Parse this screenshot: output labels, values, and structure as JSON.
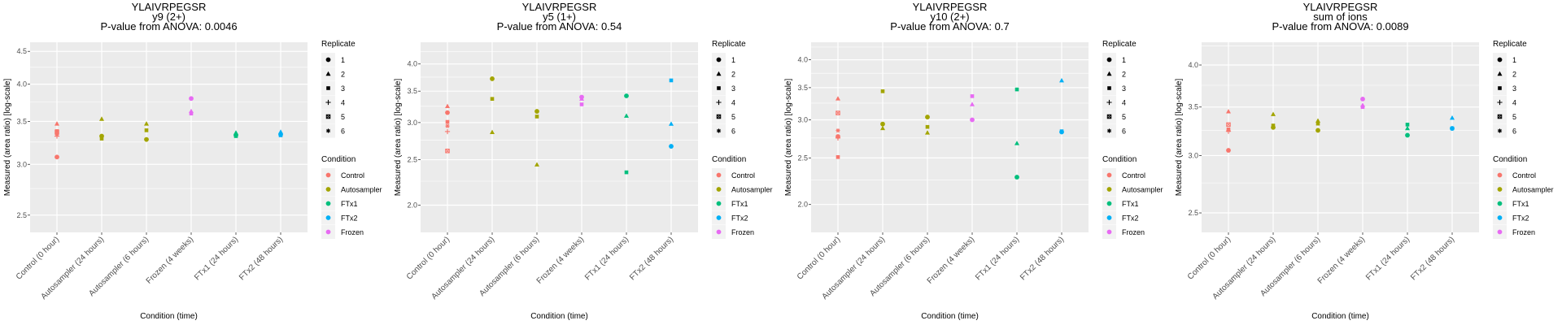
{
  "chart_data": [
    {
      "type": "scatter",
      "title": [
        "YLAIVRPEGSR",
        "y9 (2+)",
        "P-value from ANOVA: 0.0046"
      ],
      "xlabel": "Condition (time)",
      "ylabel": "Measured (area ratio) [log-scale]",
      "yscale": "log",
      "ylim": [
        2.35,
        4.65
      ],
      "yticks": [
        2.5,
        3.0,
        3.5,
        4.0,
        4.5
      ],
      "ytick_labels": [
        "2.5",
        "3.0",
        "3.5",
        "4.0",
        "4.5"
      ],
      "grid": true,
      "points": [
        {
          "cat": 0,
          "cond": "Control",
          "rep": 1,
          "y": 3.08
        },
        {
          "cat": 0,
          "cond": "Control",
          "rep": 2,
          "y": 3.47
        },
        {
          "cat": 0,
          "cond": "Control",
          "rep": 3,
          "y": 3.38
        },
        {
          "cat": 0,
          "cond": "Control",
          "rep": 4,
          "y": 3.32
        },
        {
          "cat": 0,
          "cond": "Control",
          "rep": 5,
          "y": 3.37
        },
        {
          "cat": 0,
          "cond": "Control",
          "rep": 6,
          "y": 3.34
        },
        {
          "cat": 1,
          "cond": "Autosampler",
          "rep": 1,
          "y": 3.32
        },
        {
          "cat": 1,
          "cond": "Autosampler",
          "rep": 2,
          "y": 3.53
        },
        {
          "cat": 1,
          "cond": "Autosampler",
          "rep": 3,
          "y": 3.29
        },
        {
          "cat": 2,
          "cond": "Autosampler",
          "rep": 1,
          "y": 3.28
        },
        {
          "cat": 2,
          "cond": "Autosampler",
          "rep": 2,
          "y": 3.47
        },
        {
          "cat": 2,
          "cond": "Autosampler",
          "rep": 3,
          "y": 3.39
        },
        {
          "cat": 3,
          "cond": "Frozen",
          "rep": 1,
          "y": 3.8
        },
        {
          "cat": 3,
          "cond": "Frozen",
          "rep": 2,
          "y": 3.63
        },
        {
          "cat": 3,
          "cond": "Frozen",
          "rep": 3,
          "y": 3.6
        },
        {
          "cat": 4,
          "cond": "FTx1",
          "rep": 1,
          "y": 3.33
        },
        {
          "cat": 4,
          "cond": "FTx1",
          "rep": 2,
          "y": 3.36
        },
        {
          "cat": 4,
          "cond": "FTx1",
          "rep": 3,
          "y": 3.32
        },
        {
          "cat": 5,
          "cond": "FTx2",
          "rep": 1,
          "y": 3.34
        },
        {
          "cat": 5,
          "cond": "FTx2",
          "rep": 2,
          "y": 3.37
        },
        {
          "cat": 5,
          "cond": "FTx2",
          "rep": 3,
          "y": 3.33
        }
      ]
    },
    {
      "type": "scatter",
      "title": [
        "YLAIVRPEGSR",
        "y5 (1+)",
        "P-value from ANOVA: 0.54"
      ],
      "xlabel": "Condition (time)",
      "ylabel": "Measured (area ratio) [log-scale]",
      "yscale": "log",
      "ylim": [
        1.75,
        4.45
      ],
      "yticks": [
        2.0,
        2.5,
        3.0,
        3.5,
        4.0
      ],
      "ytick_labels": [
        "2.0",
        "2.5",
        "3.0",
        "3.5",
        "4.0"
      ],
      "grid": true,
      "points": [
        {
          "cat": 0,
          "cond": "Control",
          "rep": 1,
          "y": 3.15
        },
        {
          "cat": 0,
          "cond": "Control",
          "rep": 2,
          "y": 3.25
        },
        {
          "cat": 0,
          "cond": "Control",
          "rep": 3,
          "y": 3.01
        },
        {
          "cat": 0,
          "cond": "Control",
          "rep": 4,
          "y": 2.87
        },
        {
          "cat": 0,
          "cond": "Control",
          "rep": 5,
          "y": 2.61
        },
        {
          "cat": 0,
          "cond": "Control",
          "rep": 6,
          "y": 2.95
        },
        {
          "cat": 1,
          "cond": "Autosampler",
          "rep": 1,
          "y": 3.72
        },
        {
          "cat": 1,
          "cond": "Autosampler",
          "rep": 2,
          "y": 2.86
        },
        {
          "cat": 1,
          "cond": "Autosampler",
          "rep": 3,
          "y": 3.37
        },
        {
          "cat": 2,
          "cond": "Autosampler",
          "rep": 1,
          "y": 3.17
        },
        {
          "cat": 2,
          "cond": "Autosampler",
          "rep": 2,
          "y": 2.44
        },
        {
          "cat": 2,
          "cond": "Autosampler",
          "rep": 3,
          "y": 3.09
        },
        {
          "cat": 3,
          "cond": "Frozen",
          "rep": 1,
          "y": 3.4
        },
        {
          "cat": 3,
          "cond": "Frozen",
          "rep": 2,
          "y": 3.37
        },
        {
          "cat": 3,
          "cond": "Frozen",
          "rep": 3,
          "y": 3.28
        },
        {
          "cat": 4,
          "cond": "FTx1",
          "rep": 1,
          "y": 3.42
        },
        {
          "cat": 4,
          "cond": "FTx1",
          "rep": 2,
          "y": 3.1
        },
        {
          "cat": 4,
          "cond": "FTx1",
          "rep": 3,
          "y": 2.35
        },
        {
          "cat": 5,
          "cond": "FTx2",
          "rep": 1,
          "y": 2.67
        },
        {
          "cat": 5,
          "cond": "FTx2",
          "rep": 2,
          "y": 2.98
        },
        {
          "cat": 5,
          "cond": "FTx2",
          "rep": 3,
          "y": 3.69
        }
      ]
    },
    {
      "type": "scatter",
      "title": [
        "YLAIVRPEGSR",
        "y10 (2+)",
        "P-value from ANOVA: 0.7"
      ],
      "xlabel": "Condition (time)",
      "ylabel": "Measured (area ratio) [log-scale]",
      "yscale": "log",
      "ylim": [
        1.75,
        4.35
      ],
      "yticks": [
        2.0,
        2.5,
        3.0,
        3.5,
        4.0
      ],
      "ytick_labels": [
        "2.0",
        "2.5",
        "3.0",
        "3.5",
        "4.0"
      ],
      "grid": true,
      "points": [
        {
          "cat": 0,
          "cond": "Control",
          "rep": 1,
          "y": 2.77
        },
        {
          "cat": 0,
          "cond": "Control",
          "rep": 2,
          "y": 3.32
        },
        {
          "cat": 0,
          "cond": "Control",
          "rep": 3,
          "y": 2.51
        },
        {
          "cat": 0,
          "cond": "Control",
          "rep": 4,
          "y": 2.75
        },
        {
          "cat": 0,
          "cond": "Control",
          "rep": 5,
          "y": 3.1
        },
        {
          "cat": 0,
          "cond": "Control",
          "rep": 6,
          "y": 2.85
        },
        {
          "cat": 1,
          "cond": "Autosampler",
          "rep": 1,
          "y": 2.94
        },
        {
          "cat": 1,
          "cond": "Autosampler",
          "rep": 2,
          "y": 2.88
        },
        {
          "cat": 1,
          "cond": "Autosampler",
          "rep": 3,
          "y": 3.44
        },
        {
          "cat": 2,
          "cond": "Autosampler",
          "rep": 1,
          "y": 3.04
        },
        {
          "cat": 2,
          "cond": "Autosampler",
          "rep": 2,
          "y": 2.82
        },
        {
          "cat": 2,
          "cond": "Autosampler",
          "rep": 3,
          "y": 2.9
        },
        {
          "cat": 3,
          "cond": "Frozen",
          "rep": 1,
          "y": 3.0
        },
        {
          "cat": 3,
          "cond": "Frozen",
          "rep": 2,
          "y": 3.23
        },
        {
          "cat": 3,
          "cond": "Frozen",
          "rep": 3,
          "y": 3.36
        },
        {
          "cat": 4,
          "cond": "FTx1",
          "rep": 1,
          "y": 2.28
        },
        {
          "cat": 4,
          "cond": "FTx1",
          "rep": 2,
          "y": 2.68
        },
        {
          "cat": 4,
          "cond": "FTx1",
          "rep": 3,
          "y": 3.47
        },
        {
          "cat": 5,
          "cond": "FTx2",
          "rep": 1,
          "y": 2.83
        },
        {
          "cat": 5,
          "cond": "FTx2",
          "rep": 2,
          "y": 3.62
        },
        {
          "cat": 5,
          "cond": "FTx2",
          "rep": 3,
          "y": 2.84
        }
      ]
    },
    {
      "type": "scatter",
      "title": [
        "YLAIVRPEGSR",
        "sum of ions",
        "P-value from ANOVA: 0.0089"
      ],
      "xlabel": "Condition (time)",
      "ylabel": "Measured (area ratio) [log-scale]",
      "yscale": "log",
      "ylim": [
        2.35,
        4.3
      ],
      "yticks": [
        2.5,
        3.0,
        3.5,
        4.0
      ],
      "ytick_labels": [
        "2.5",
        "3.0",
        "3.5",
        "4.0"
      ],
      "grid": true,
      "points": [
        {
          "cat": 0,
          "cond": "Control",
          "rep": 1,
          "y": 3.05
        },
        {
          "cat": 0,
          "cond": "Control",
          "rep": 2,
          "y": 3.45
        },
        {
          "cat": 0,
          "cond": "Control",
          "rep": 3,
          "y": 3.26
        },
        {
          "cat": 0,
          "cond": "Control",
          "rep": 4,
          "y": 3.24
        },
        {
          "cat": 0,
          "cond": "Control",
          "rep": 5,
          "y": 3.31
        },
        {
          "cat": 0,
          "cond": "Control",
          "rep": 6,
          "y": 3.25
        },
        {
          "cat": 1,
          "cond": "Autosampler",
          "rep": 1,
          "y": 3.28
        },
        {
          "cat": 1,
          "cond": "Autosampler",
          "rep": 2,
          "y": 3.42
        },
        {
          "cat": 1,
          "cond": "Autosampler",
          "rep": 3,
          "y": 3.3
        },
        {
          "cat": 2,
          "cond": "Autosampler",
          "rep": 1,
          "y": 3.25
        },
        {
          "cat": 2,
          "cond": "Autosampler",
          "rep": 2,
          "y": 3.35
        },
        {
          "cat": 2,
          "cond": "Autosampler",
          "rep": 3,
          "y": 3.32
        },
        {
          "cat": 3,
          "cond": "Frozen",
          "rep": 1,
          "y": 3.59
        },
        {
          "cat": 3,
          "cond": "Frozen",
          "rep": 2,
          "y": 3.52
        },
        {
          "cat": 3,
          "cond": "Frozen",
          "rep": 3,
          "y": 3.5
        },
        {
          "cat": 4,
          "cond": "FTx1",
          "rep": 1,
          "y": 3.2
        },
        {
          "cat": 4,
          "cond": "FTx1",
          "rep": 2,
          "y": 3.27
        },
        {
          "cat": 4,
          "cond": "FTx1",
          "rep": 3,
          "y": 3.31
        },
        {
          "cat": 5,
          "cond": "FTx2",
          "rep": 1,
          "y": 3.27
        },
        {
          "cat": 5,
          "cond": "FTx2",
          "rep": 2,
          "y": 3.38
        },
        {
          "cat": 5,
          "cond": "FTx2",
          "rep": 3,
          "y": 3.27
        }
      ]
    }
  ],
  "categories": [
    "Control (0 hour)",
    "Autosampler (24 hours)",
    "Autosampler (6 hours)",
    "Frozen (4 weeks)",
    "FTx1 (24 hours)",
    "FTx2 (48 hours)"
  ],
  "legend": {
    "position": "right",
    "replicate_title": "Replicate",
    "replicates": [
      {
        "label": "1",
        "shape": "circle"
      },
      {
        "label": "2",
        "shape": "triangle"
      },
      {
        "label": "3",
        "shape": "square"
      },
      {
        "label": "4",
        "shape": "plus"
      },
      {
        "label": "5",
        "shape": "square-cross"
      },
      {
        "label": "6",
        "shape": "asterisk"
      }
    ],
    "condition_title": "Condition",
    "conditions": [
      {
        "label": "Control",
        "color": "#F8766D"
      },
      {
        "label": "Autosampler",
        "color": "#A3A500"
      },
      {
        "label": "FTx1",
        "color": "#00BF7D"
      },
      {
        "label": "FTx2",
        "color": "#00B0F6"
      },
      {
        "label": "Frozen",
        "color": "#E76BF3"
      }
    ]
  }
}
